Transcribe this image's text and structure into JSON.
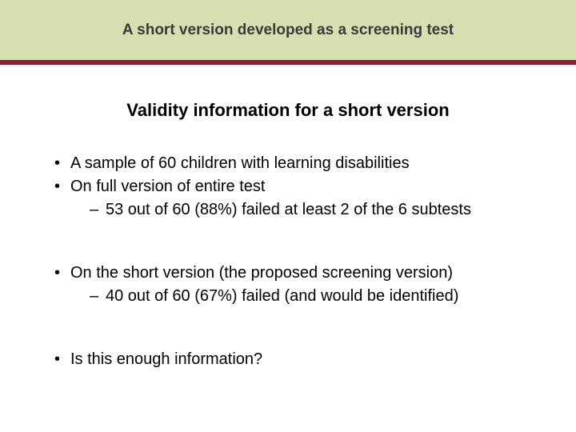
{
  "colors": {
    "header_band": "#d5dfaf",
    "divider": "#8a1e3b",
    "header_text": "#3a3a3a",
    "body_text": "#000000",
    "background": "#ffffff"
  },
  "header": {
    "title": "A short version developed as a screening test"
  },
  "subtitle": "Validity information for a short version",
  "bullets": [
    {
      "text": "A sample of 60 children with learning disabilities",
      "sub": []
    },
    {
      "text": "On full version of entire test",
      "sub": [
        "53 out of 60 (88%) failed at least 2 of the 6 subtests"
      ]
    },
    {
      "text": "On the short version (the proposed screening version)",
      "sub": [
        "40 out of 60 (67%) failed (and would be identified)"
      ]
    },
    {
      "text": "Is this enough information?",
      "sub": []
    }
  ],
  "typography": {
    "header_fontsize": 19,
    "subtitle_fontsize": 22,
    "body_fontsize": 20,
    "font_family": "Arial"
  }
}
